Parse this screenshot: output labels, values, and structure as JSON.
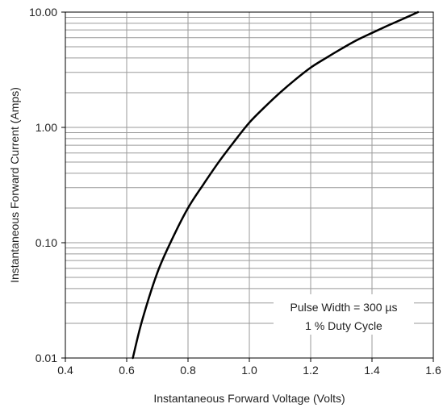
{
  "chart_data": {
    "type": "line",
    "title": "",
    "xlabel": "Instantaneous Forward Voltage (Volts)",
    "ylabel": "Instantaneous Forward Current (Amps)",
    "xlim": [
      0.4,
      1.6
    ],
    "ylim": [
      0.01,
      10
    ],
    "y_scale": "log",
    "grid": true,
    "x_ticks": [
      "0.4",
      "0.6",
      "0.8",
      "1.0",
      "1.2",
      "1.4",
      "1.6"
    ],
    "y_ticks": [
      "0.01",
      "0.10",
      "1.00",
      "10.00"
    ],
    "annotation": [
      "Pulse Width = 300 µs",
      "1 % Duty Cycle"
    ],
    "series": [
      {
        "x": [
          0.62,
          0.65,
          0.7,
          0.75,
          0.8,
          0.85,
          0.9,
          0.95,
          1.0,
          1.05,
          1.1,
          1.15,
          1.2,
          1.25,
          1.3,
          1.35,
          1.4,
          1.45,
          1.5,
          1.55
        ],
        "y": [
          0.01,
          0.021,
          0.055,
          0.11,
          0.2,
          0.32,
          0.5,
          0.75,
          1.1,
          1.5,
          2.0,
          2.6,
          3.3,
          4.0,
          4.8,
          5.7,
          6.6,
          7.6,
          8.7,
          10.0
        ],
        "color": "#000000"
      }
    ]
  }
}
